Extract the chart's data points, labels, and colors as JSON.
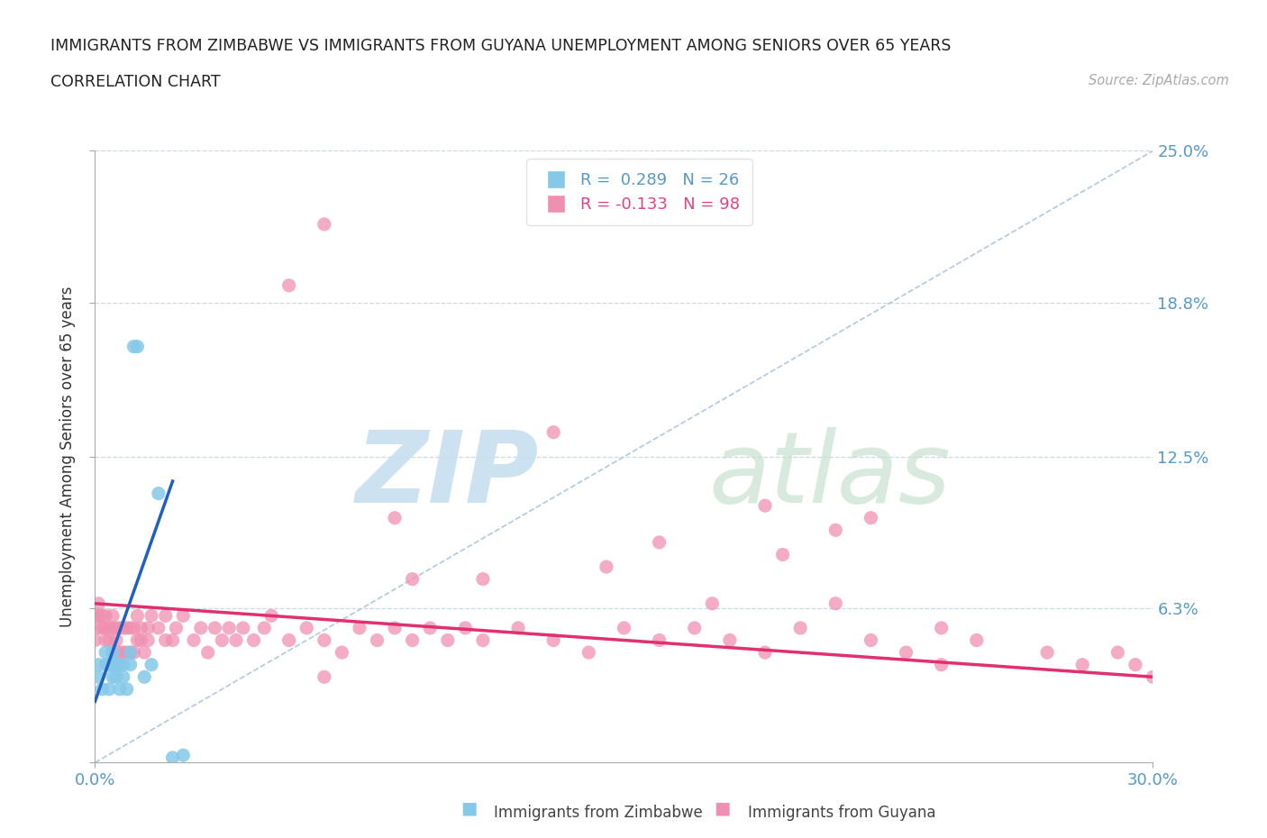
{
  "title_line1": "IMMIGRANTS FROM ZIMBABWE VS IMMIGRANTS FROM GUYANA UNEMPLOYMENT AMONG SENIORS OVER 65 YEARS",
  "title_line2": "CORRELATION CHART",
  "source": "Source: ZipAtlas.com",
  "ylabel": "Unemployment Among Seniors over 65 years",
  "xmin": 0.0,
  "xmax": 0.3,
  "ymin": 0.0,
  "ymax": 0.25,
  "yticks": [
    0.0,
    0.063,
    0.125,
    0.188,
    0.25
  ],
  "ytick_labels": [
    "",
    "6.3%",
    "12.5%",
    "18.8%",
    "25.0%"
  ],
  "xticks": [
    0.0,
    0.3
  ],
  "xtick_labels": [
    "0.0%",
    "30.0%"
  ],
  "grid_color": "#c8d8e8",
  "color_zimbabwe": "#85c8e8",
  "color_guyana": "#f090b0",
  "color_trend_zimbabwe": "#2060c0",
  "color_trend_guyana": "#e03070",
  "color_diagonal": "#b0c8e0",
  "zimbabwe_x": [
    0.001,
    0.001,
    0.002,
    0.003,
    0.003,
    0.004,
    0.004,
    0.005,
    0.005,
    0.005,
    0.006,
    0.006,
    0.007,
    0.007,
    0.008,
    0.008,
    0.009,
    0.01,
    0.01,
    0.011,
    0.012,
    0.014,
    0.016,
    0.018,
    0.022,
    0.025
  ],
  "zimbabwe_y": [
    0.035,
    0.04,
    0.03,
    0.04,
    0.045,
    0.03,
    0.04,
    0.035,
    0.04,
    0.045,
    0.035,
    0.04,
    0.03,
    0.04,
    0.035,
    0.04,
    0.03,
    0.04,
    0.045,
    0.17,
    0.17,
    0.035,
    0.04,
    0.11,
    0.002,
    0.003
  ],
  "guyana_x": [
    0.0,
    0.0,
    0.001,
    0.001,
    0.001,
    0.002,
    0.002,
    0.003,
    0.003,
    0.003,
    0.004,
    0.004,
    0.005,
    0.005,
    0.005,
    0.006,
    0.006,
    0.007,
    0.007,
    0.008,
    0.008,
    0.009,
    0.009,
    0.01,
    0.01,
    0.011,
    0.011,
    0.012,
    0.012,
    0.013,
    0.013,
    0.014,
    0.015,
    0.015,
    0.016,
    0.018,
    0.02,
    0.02,
    0.022,
    0.023,
    0.025,
    0.028,
    0.03,
    0.032,
    0.034,
    0.036,
    0.038,
    0.04,
    0.042,
    0.045,
    0.048,
    0.05,
    0.055,
    0.06,
    0.065,
    0.07,
    0.075,
    0.08,
    0.085,
    0.09,
    0.095,
    0.1,
    0.105,
    0.11,
    0.12,
    0.13,
    0.14,
    0.15,
    0.16,
    0.17,
    0.18,
    0.19,
    0.2,
    0.21,
    0.22,
    0.23,
    0.24,
    0.25,
    0.27,
    0.28,
    0.29,
    0.295,
    0.3,
    0.11,
    0.195,
    0.055,
    0.09,
    0.16,
    0.21,
    0.22,
    0.175,
    0.145,
    0.085,
    0.065,
    0.13,
    0.19,
    0.24,
    0.065
  ],
  "guyana_y": [
    0.05,
    0.06,
    0.055,
    0.06,
    0.065,
    0.055,
    0.06,
    0.05,
    0.055,
    0.06,
    0.05,
    0.055,
    0.045,
    0.055,
    0.06,
    0.05,
    0.055,
    0.045,
    0.055,
    0.045,
    0.055,
    0.045,
    0.055,
    0.045,
    0.055,
    0.045,
    0.055,
    0.05,
    0.06,
    0.05,
    0.055,
    0.045,
    0.05,
    0.055,
    0.06,
    0.055,
    0.05,
    0.06,
    0.05,
    0.055,
    0.06,
    0.05,
    0.055,
    0.045,
    0.055,
    0.05,
    0.055,
    0.05,
    0.055,
    0.05,
    0.055,
    0.06,
    0.05,
    0.055,
    0.05,
    0.045,
    0.055,
    0.05,
    0.055,
    0.05,
    0.055,
    0.05,
    0.055,
    0.05,
    0.055,
    0.05,
    0.045,
    0.055,
    0.05,
    0.055,
    0.05,
    0.045,
    0.055,
    0.065,
    0.05,
    0.045,
    0.055,
    0.05,
    0.045,
    0.04,
    0.045,
    0.04,
    0.035,
    0.075,
    0.085,
    0.195,
    0.075,
    0.09,
    0.095,
    0.1,
    0.065,
    0.08,
    0.1,
    0.22,
    0.135,
    0.105,
    0.04,
    0.035
  ],
  "zim_trend_x0": 0.0,
  "zim_trend_y0": 0.025,
  "zim_trend_x1": 0.022,
  "zim_trend_y1": 0.115,
  "guy_trend_x0": 0.0,
  "guy_trend_y0": 0.065,
  "guy_trend_x1": 0.3,
  "guy_trend_y1": 0.035
}
